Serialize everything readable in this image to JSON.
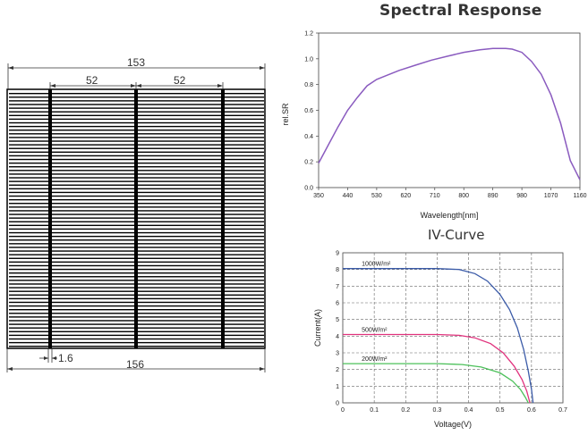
{
  "cell_drawing": {
    "dim_top": "153",
    "dim_busbar_left": "52",
    "dim_busbar_right": "52",
    "dim_busbar_width": "1.6",
    "dim_bottom": "156"
  },
  "spectral_response": {
    "title": "Spectral Response",
    "chart_data": {
      "type": "line",
      "xlabel": "Wavelength[nm]",
      "ylabel": "rel.SR",
      "xlim": [
        350,
        1160
      ],
      "ylim": [
        0,
        1.2
      ],
      "x_ticks": [
        "350",
        "440",
        "530",
        "620",
        "710",
        "800",
        "890",
        "980",
        "1070",
        "1160"
      ],
      "y_ticks": [
        "0.0",
        "0.2",
        "0.4",
        "0.6",
        "0.8",
        "1.0",
        "1.2"
      ],
      "series": [
        {
          "color": "#8a5bbf",
          "x": [
            350,
            380,
            410,
            440,
            470,
            500,
            530,
            560,
            600,
            650,
            700,
            750,
            800,
            850,
            890,
            930,
            950,
            980,
            1010,
            1040,
            1070,
            1100,
            1130,
            1160
          ],
          "y": [
            0.19,
            0.33,
            0.47,
            0.6,
            0.7,
            0.79,
            0.84,
            0.87,
            0.91,
            0.95,
            0.99,
            1.02,
            1.05,
            1.07,
            1.08,
            1.08,
            1.075,
            1.05,
            0.98,
            0.88,
            0.72,
            0.5,
            0.21,
            0.06
          ]
        }
      ]
    }
  },
  "iv_curve": {
    "title": "IV-Curve",
    "chart_data": {
      "type": "line",
      "xlabel": "Voltage(V)",
      "ylabel": "Current(A)",
      "xlim": [
        0,
        0.7
      ],
      "ylim": [
        0,
        9
      ],
      "grid": true,
      "x_ticks": [
        "0",
        "0.1",
        "0.2",
        "0.3",
        "0.4",
        "0.5",
        "0.6",
        "0.7"
      ],
      "y_ticks": [
        "0",
        "1",
        "2",
        "3",
        "4",
        "5",
        "6",
        "7",
        "8",
        "9"
      ],
      "series": [
        {
          "name": "1000W/m²",
          "color": "#3b5ba8",
          "x": [
            0,
            0.1,
            0.2,
            0.3,
            0.37,
            0.42,
            0.46,
            0.5,
            0.53,
            0.555,
            0.575,
            0.59,
            0.6,
            0.605
          ],
          "y": [
            8.05,
            8.05,
            8.05,
            8.05,
            8.0,
            7.75,
            7.3,
            6.5,
            5.6,
            4.5,
            3.2,
            1.9,
            0.8,
            0
          ]
        },
        {
          "name": "500W/m²",
          "color": "#e0327d",
          "x": [
            0,
            0.1,
            0.2,
            0.3,
            0.37,
            0.42,
            0.47,
            0.51,
            0.545,
            0.57,
            0.585,
            0.595
          ],
          "y": [
            4.1,
            4.1,
            4.1,
            4.1,
            4.05,
            3.9,
            3.55,
            3.0,
            2.2,
            1.4,
            0.7,
            0
          ]
        },
        {
          "name": "200W/m²",
          "color": "#4cc05a",
          "x": [
            0,
            0.1,
            0.2,
            0.3,
            0.38,
            0.44,
            0.5,
            0.54,
            0.565,
            0.58,
            0.59
          ],
          "y": [
            2.35,
            2.35,
            2.35,
            2.35,
            2.3,
            2.15,
            1.8,
            1.3,
            0.8,
            0.35,
            0
          ]
        }
      ]
    }
  }
}
